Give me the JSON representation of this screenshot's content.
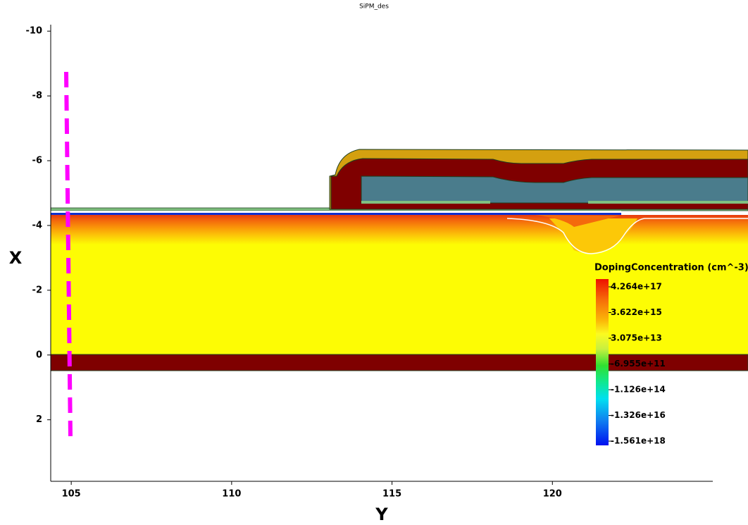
{
  "chart_data": {
    "type": "device",
    "title": "SiPM_des",
    "xlabel": "Y",
    "ylabel": "X",
    "xlim": [
      104.36,
      125
    ],
    "ylim": [
      -10.2,
      3.9
    ],
    "xticks": [
      105,
      110,
      115,
      120
    ],
    "yticks": [
      -10,
      -8,
      -6,
      -4,
      -2,
      0,
      2
    ],
    "colorbar": {
      "title": "DopingConcentration (cm^-3)",
      "ticks": [
        {
          "value": 4.264e+17,
          "label": "4.264e+17"
        },
        {
          "value": 3622000000000000.0,
          "label": "3.622e+15"
        },
        {
          "value": 30750000000000.0,
          "label": "3.075e+13"
        },
        {
          "value": -695500000000.0,
          "label": "-6.955e+11"
        },
        {
          "value": -112600000000000.0,
          "label": "-1.126e+14"
        },
        {
          "value": -1.326e+16,
          "label": "-1.326e+16"
        },
        {
          "value": -1.561e+18,
          "label": "-1.561e+18"
        }
      ]
    }
  }
}
